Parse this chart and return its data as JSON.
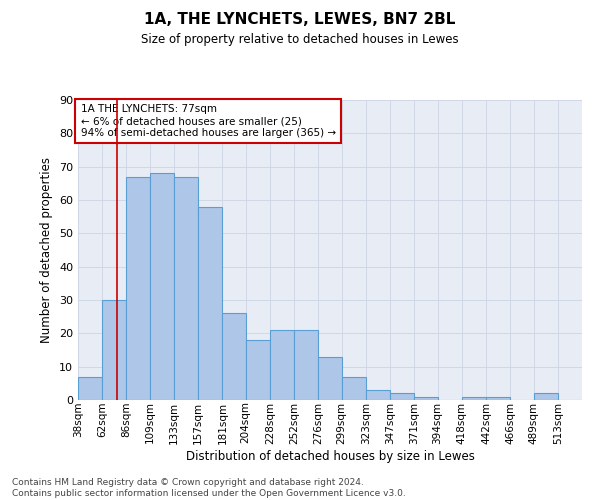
{
  "title1": "1A, THE LYNCHETS, LEWES, BN7 2BL",
  "title2": "Size of property relative to detached houses in Lewes",
  "xlabel": "Distribution of detached houses by size in Lewes",
  "ylabel": "Number of detached properties",
  "categories": [
    "38sqm",
    "62sqm",
    "86sqm",
    "109sqm",
    "133sqm",
    "157sqm",
    "181sqm",
    "204sqm",
    "228sqm",
    "252sqm",
    "276sqm",
    "299sqm",
    "323sqm",
    "347sqm",
    "371sqm",
    "394sqm",
    "418sqm",
    "442sqm",
    "466sqm",
    "489sqm",
    "513sqm"
  ],
  "values": [
    7,
    30,
    67,
    68,
    67,
    58,
    26,
    18,
    21,
    21,
    13,
    7,
    3,
    2,
    1,
    0,
    1,
    1,
    0,
    2,
    0
  ],
  "bar_color": "#aec6e8",
  "bar_edge_color": "#5a9fd4",
  "grid_color": "#d0d8e8",
  "property_line_x": 77,
  "bin_edges": [
    38,
    62,
    86,
    109,
    133,
    157,
    181,
    204,
    228,
    252,
    276,
    299,
    323,
    347,
    371,
    394,
    418,
    442,
    466,
    489,
    513,
    537
  ],
  "annotation_text": "1A THE LYNCHETS: 77sqm\n← 6% of detached houses are smaller (25)\n94% of semi-detached houses are larger (365) →",
  "annotation_box_color": "#ffffff",
  "annotation_border_color": "#cc0000",
  "footnote": "Contains HM Land Registry data © Crown copyright and database right 2024.\nContains public sector information licensed under the Open Government Licence v3.0.",
  "ylim": [
    0,
    90
  ],
  "yticks": [
    0,
    10,
    20,
    30,
    40,
    50,
    60,
    70,
    80,
    90
  ],
  "bg_color": "#e8edf5",
  "fig_bg_color": "#ffffff",
  "vline_color": "#cc0000"
}
